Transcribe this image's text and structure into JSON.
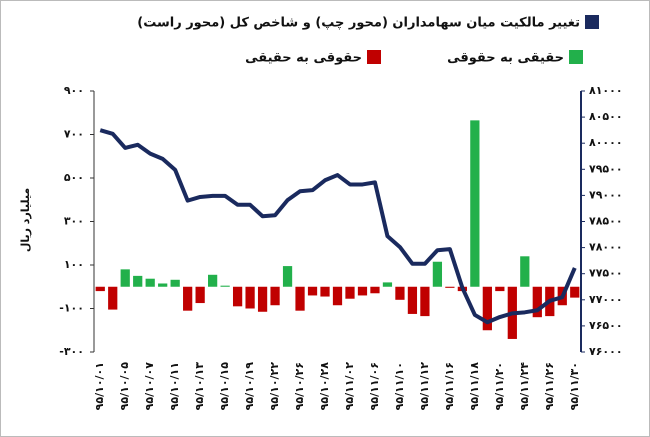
{
  "chart_data": {
    "type": "bar_line",
    "ylabel": "میلیارد ریال",
    "categories": [
      "۹۵/۱۰/۰۱",
      null,
      "۹۵/۱۰/۰۵",
      null,
      "۹۵/۱۰/۰۷",
      null,
      "۹۵/۱۰/۱۱",
      null,
      "۹۵/۱۰/۱۳",
      null,
      "۹۵/۱۰/۱۵",
      null,
      "۹۵/۱۰/۱۹",
      null,
      "۹۵/۱۰/۲۲",
      null,
      "۹۵/۱۰/۲۶",
      null,
      "۹۵/۱۰/۲۸",
      null,
      "۹۵/۱۱/۰۲",
      null,
      "۹۵/۱۱/۰۶",
      null,
      "۹۵/۱۱/۱۰",
      null,
      "۹۵/۱۱/۱۲",
      null,
      "۹۵/۱۱/۱۶",
      null,
      "۹۵/۱۱/۱۸",
      null,
      "۹۵/۱۱/۲۰",
      null,
      "۹۵/۱۱/۲۴",
      null,
      "۹۵/۱۱/۲۶",
      null,
      "۹۵/۱۱/۳۰"
    ],
    "series": [
      {
        "name": "حقیقی به حقوقی",
        "type": "bar",
        "color": "#22b04b",
        "values": [
          null,
          null,
          80,
          50,
          37,
          15,
          32,
          null,
          null,
          55,
          5,
          null,
          null,
          null,
          null,
          95,
          null,
          null,
          null,
          null,
          null,
          null,
          null,
          20,
          null,
          null,
          null,
          115,
          null,
          null,
          765,
          null,
          null,
          null,
          140,
          null,
          null,
          null,
          null
        ]
      },
      {
        "name": "حقوقی به حقیقی",
        "type": "bar",
        "color": "#c00000",
        "values": [
          -20,
          -105,
          null,
          null,
          null,
          null,
          null,
          -110,
          -75,
          null,
          null,
          -90,
          -100,
          -115,
          -85,
          null,
          -110,
          -40,
          -45,
          -85,
          -55,
          -40,
          -30,
          null,
          -60,
          -125,
          -135,
          null,
          -5,
          -20,
          null,
          -200,
          -20,
          -240,
          null,
          -140,
          -135,
          -85,
          -50
        ]
      },
      {
        "name": "تغییر مالکیت میان سهامداران (محور چپ) و شاخص کل (محور راست)",
        "type": "line",
        "axis": "y2",
        "color": "#1a2a5e",
        "values": [
          80250,
          80180,
          79910,
          79970,
          79800,
          79700,
          79490,
          78900,
          78970,
          78990,
          78990,
          78820,
          78820,
          78600,
          78620,
          78910,
          79080,
          79100,
          79290,
          79390,
          79210,
          79210,
          79250,
          78220,
          78010,
          77690,
          77690,
          77950,
          77970,
          77230,
          76710,
          76570,
          76670,
          76740,
          76760,
          76800,
          76980,
          77050,
          77610
        ]
      }
    ],
    "ylim": [
      -300,
      900
    ],
    "yticks": [
      {
        "value": 900,
        "label": "۹۰۰"
      },
      {
        "value": 700,
        "label": "۷۰۰"
      },
      {
        "value": 500,
        "label": "۵۰۰"
      },
      {
        "value": 300,
        "label": "۳۰۰"
      },
      {
        "value": 100,
        "label": "۱۰۰"
      },
      {
        "value": -100,
        "label": "-۱۰۰"
      },
      {
        "value": -300,
        "label": "-۳۰۰"
      }
    ],
    "y2lim": [
      76000,
      81000
    ],
    "y2ticks": [
      {
        "value": 81000,
        "label": "۸۱۰۰۰"
      },
      {
        "value": 80500,
        "label": "۸۰۵۰۰"
      },
      {
        "value": 80000,
        "label": "۸۰۰۰۰"
      },
      {
        "value": 79500,
        "label": "۷۹۵۰۰"
      },
      {
        "value": 79000,
        "label": "۷۹۰۰۰"
      },
      {
        "value": 78500,
        "label": "۷۸۵۰۰"
      },
      {
        "value": 78000,
        "label": "۷۸۰۰۰"
      },
      {
        "value": 77500,
        "label": "۷۷۵۰۰"
      },
      {
        "value": 77000,
        "label": "۷۷۰۰۰"
      },
      {
        "value": 76500,
        "label": "۷۶۵۰۰"
      },
      {
        "value": 76000,
        "label": "۷۶۰۰۰"
      }
    ],
    "grid": false
  }
}
